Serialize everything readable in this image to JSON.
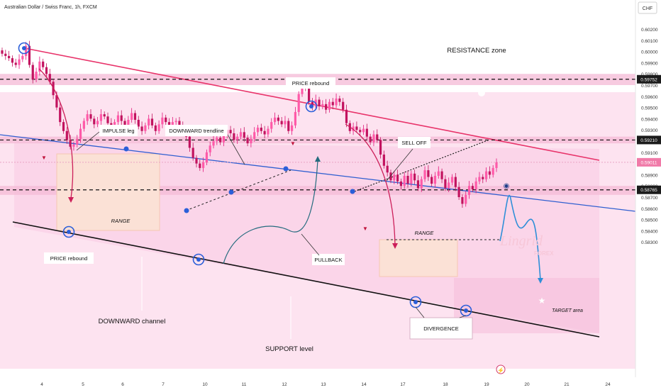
{
  "header": {
    "symbol_title": "Australian Dollar / Swiss Franc, 1h, FXCM",
    "currency": "CHF"
  },
  "watermark": {
    "brand": "Lingrid",
    "sub": "FOREX"
  },
  "colors": {
    "background_zone": "#fbd5ea",
    "up_candle": "#e2157c",
    "down_candle": "#e2157c",
    "channel_top": "#e8336a",
    "channel_bottom": "#111111",
    "trendline": "#2f5fd0",
    "price_tag_bg": "#1b1b1b",
    "marker": "#2b5fd9"
  },
  "chart_data": {
    "type": "candlestick",
    "title": "Australian Dollar / Swiss Franc, 1h, FXCM",
    "y_axis": {
      "unit": "CHF",
      "ticks": [
        0.602,
        0.601,
        0.6,
        0.599,
        0.598,
        0.597,
        0.596,
        0.595,
        0.594,
        0.593,
        0.592,
        0.591,
        0.59,
        0.589,
        0.588,
        0.587,
        0.586,
        0.585,
        0.584,
        0.583
      ],
      "tick_labels": [
        "0.60200",
        "0.60100",
        "0.60000",
        "0.59900",
        "0.59800",
        "0.59700",
        "0.59600",
        "0.59500",
        "0.59400",
        "0.59300",
        "0.59200",
        "0.59100",
        "0.59000",
        "0.58900",
        "0.58800",
        "0.58700",
        "0.58600",
        "0.58500",
        "0.58400",
        "0.58300"
      ],
      "range": [
        0.5825,
        0.6029
      ]
    },
    "x_axis": {
      "tick_labels": [
        "4",
        "5",
        "6",
        "7",
        "10",
        "11",
        "12",
        "13",
        "14",
        "17",
        "18",
        "19",
        "20",
        "21",
        "24"
      ]
    },
    "price_tags": [
      {
        "value": 0.59752,
        "label": "0.59752"
      },
      {
        "value": 0.5921,
        "label": "0.59210"
      },
      {
        "value": 0.59011,
        "label": "0.59011"
      },
      {
        "value": 0.58765,
        "label": "0.58765"
      }
    ],
    "zones": [
      {
        "name": "resistance",
        "from": 0.597,
        "to": 0.598
      },
      {
        "name": "mid",
        "from": 0.5918,
        "to": 0.5924
      },
      {
        "name": "support",
        "from": 0.5872,
        "to": 0.588
      }
    ],
    "series": [
      {
        "close": [
          0.5998,
          0.5996,
          0.5994,
          0.599,
          0.5988,
          0.5993,
          0.5996,
          0.6005,
          0.5988,
          0.5975,
          0.5982,
          0.5991,
          0.5986,
          0.598,
          0.5973,
          0.5961,
          0.595,
          0.5937,
          0.5929,
          0.5921,
          0.5915,
          0.5917,
          0.5922,
          0.5931,
          0.5938,
          0.5944,
          0.594,
          0.5935,
          0.5938,
          0.5944,
          0.5942,
          0.5936,
          0.5932,
          0.5937,
          0.5943,
          0.5938,
          0.5934,
          0.5939,
          0.5945,
          0.5939,
          0.5933,
          0.5929,
          0.5934,
          0.594,
          0.5934,
          0.5929,
          0.5935,
          0.5941,
          0.5937,
          0.5934,
          0.5937,
          0.5938,
          0.5933,
          0.5931,
          0.5924,
          0.5914,
          0.5905,
          0.59,
          0.5896,
          0.5901,
          0.591,
          0.5916,
          0.592,
          0.5923,
          0.5919,
          0.5925,
          0.593,
          0.5927,
          0.5921,
          0.5924,
          0.5928,
          0.5923,
          0.5918,
          0.5922,
          0.5928,
          0.5932,
          0.5929,
          0.5926,
          0.5931,
          0.5937,
          0.5941,
          0.5938,
          0.5935,
          0.5938,
          0.5929,
          0.5934,
          0.5946,
          0.5962,
          0.5972,
          0.5968,
          0.5955,
          0.5951,
          0.5957,
          0.5951,
          0.5953,
          0.5948,
          0.5955,
          0.5952,
          0.5958,
          0.5955,
          0.5948,
          0.5936,
          0.5929,
          0.5933,
          0.593,
          0.5928,
          0.5931,
          0.5924,
          0.5919,
          0.5926,
          0.5921,
          0.5908,
          0.5898,
          0.5892,
          0.5885,
          0.589,
          0.5884,
          0.588,
          0.5889,
          0.5882,
          0.5891,
          0.5885,
          0.5878,
          0.5886,
          0.5894,
          0.5888,
          0.5882,
          0.5889,
          0.5893,
          0.5886,
          0.5878,
          0.5883,
          0.5888,
          0.5879,
          0.587,
          0.5864,
          0.5872,
          0.588,
          0.5877,
          0.5884,
          0.5888,
          0.5886,
          0.5893,
          0.589,
          0.5896,
          0.5901
        ]
      }
    ],
    "annotations": {
      "resistance": "RESISTANCE zone",
      "price_rebound_left": "PRICE rebound",
      "price_rebound_top": "PRICE rebound",
      "impulse": "IMPULSE leg",
      "downward_trendline": "DOWNWARD trendline",
      "sell_off": "SELL OFF",
      "range_left": "RANGE",
      "range_right": "RANGE",
      "pullback": "PULLBACK",
      "downward_channel": "DOWNWARD channel",
      "support": "SUPPORT level",
      "divergence": "DIVERGENCE",
      "target": "TARGET area"
    }
  }
}
